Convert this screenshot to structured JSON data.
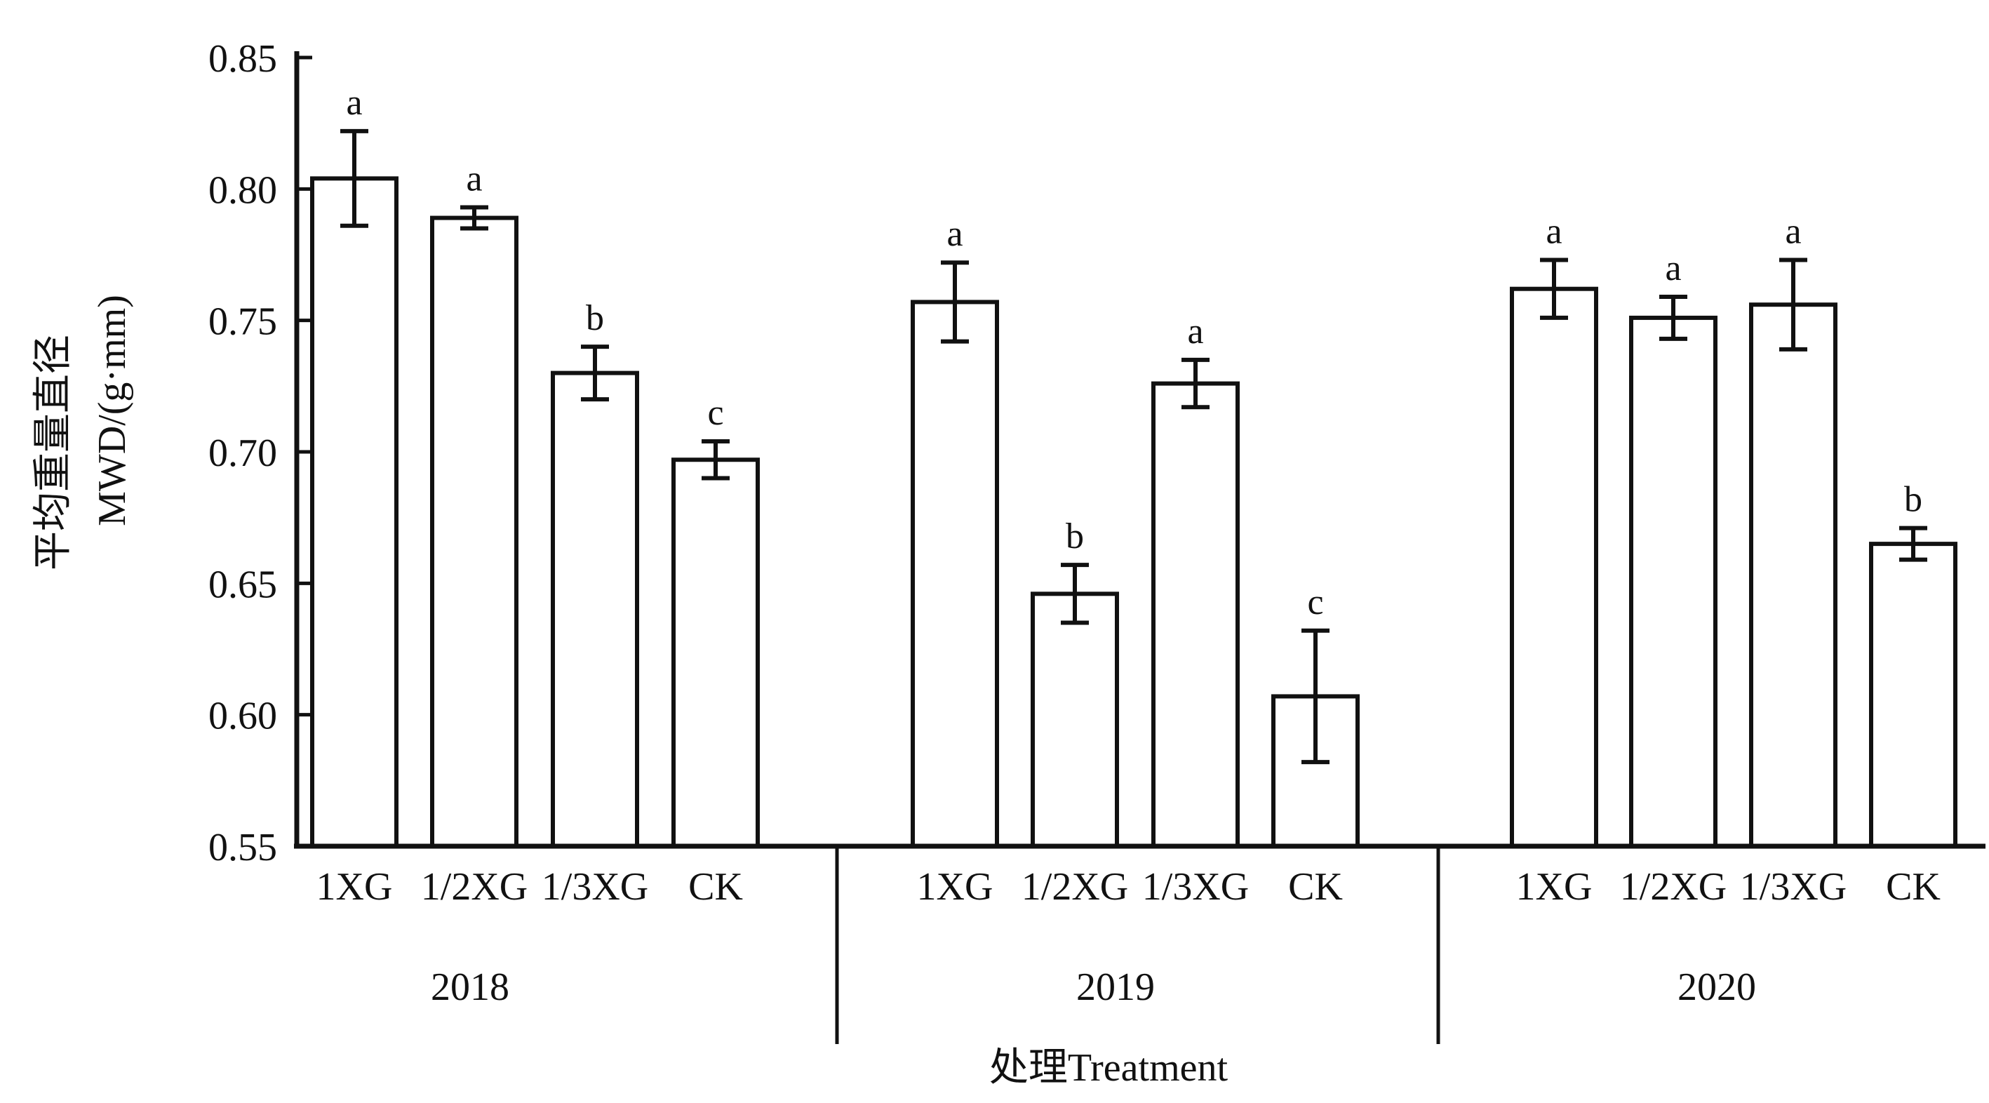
{
  "chart_data": {
    "type": "bar",
    "title": "",
    "xlabel": "处理Treatment",
    "ylabel_cn": "平均重量直径",
    "ylabel": "MWD/(g·mm)",
    "ylim": [
      0.55,
      0.85
    ],
    "yticks": [
      "0.85",
      "0.80",
      "0.75",
      "0.70",
      "0.65",
      "0.60",
      "0.55"
    ],
    "grid": false,
    "groups": [
      {
        "year": "2018",
        "bars": [
          {
            "category": "1XG",
            "value": 0.804,
            "err": 0.018,
            "letter": "a"
          },
          {
            "category": "1/2XG",
            "value": 0.789,
            "err": 0.004,
            "letter": "a"
          },
          {
            "category": "1/3XG",
            "value": 0.73,
            "err": 0.01,
            "letter": "b"
          },
          {
            "category": "CK",
            "value": 0.697,
            "err": 0.007,
            "letter": "c"
          }
        ]
      },
      {
        "year": "2019",
        "bars": [
          {
            "category": "1XG",
            "value": 0.757,
            "err": 0.015,
            "letter": "a"
          },
          {
            "category": "1/2XG",
            "value": 0.646,
            "err": 0.011,
            "letter": "b"
          },
          {
            "category": "1/3XG",
            "value": 0.726,
            "err": 0.009,
            "letter": "a"
          },
          {
            "category": "CK",
            "value": 0.607,
            "err": 0.025,
            "letter": "c"
          }
        ]
      },
      {
        "year": "2020",
        "bars": [
          {
            "category": "1XG",
            "value": 0.762,
            "err": 0.011,
            "letter": "a"
          },
          {
            "category": "1/2XG",
            "value": 0.751,
            "err": 0.008,
            "letter": "a"
          },
          {
            "category": "1/3XG",
            "value": 0.756,
            "err": 0.017,
            "letter": "a"
          },
          {
            "category": "CK",
            "value": 0.665,
            "err": 0.006,
            "letter": "b"
          }
        ]
      }
    ]
  }
}
